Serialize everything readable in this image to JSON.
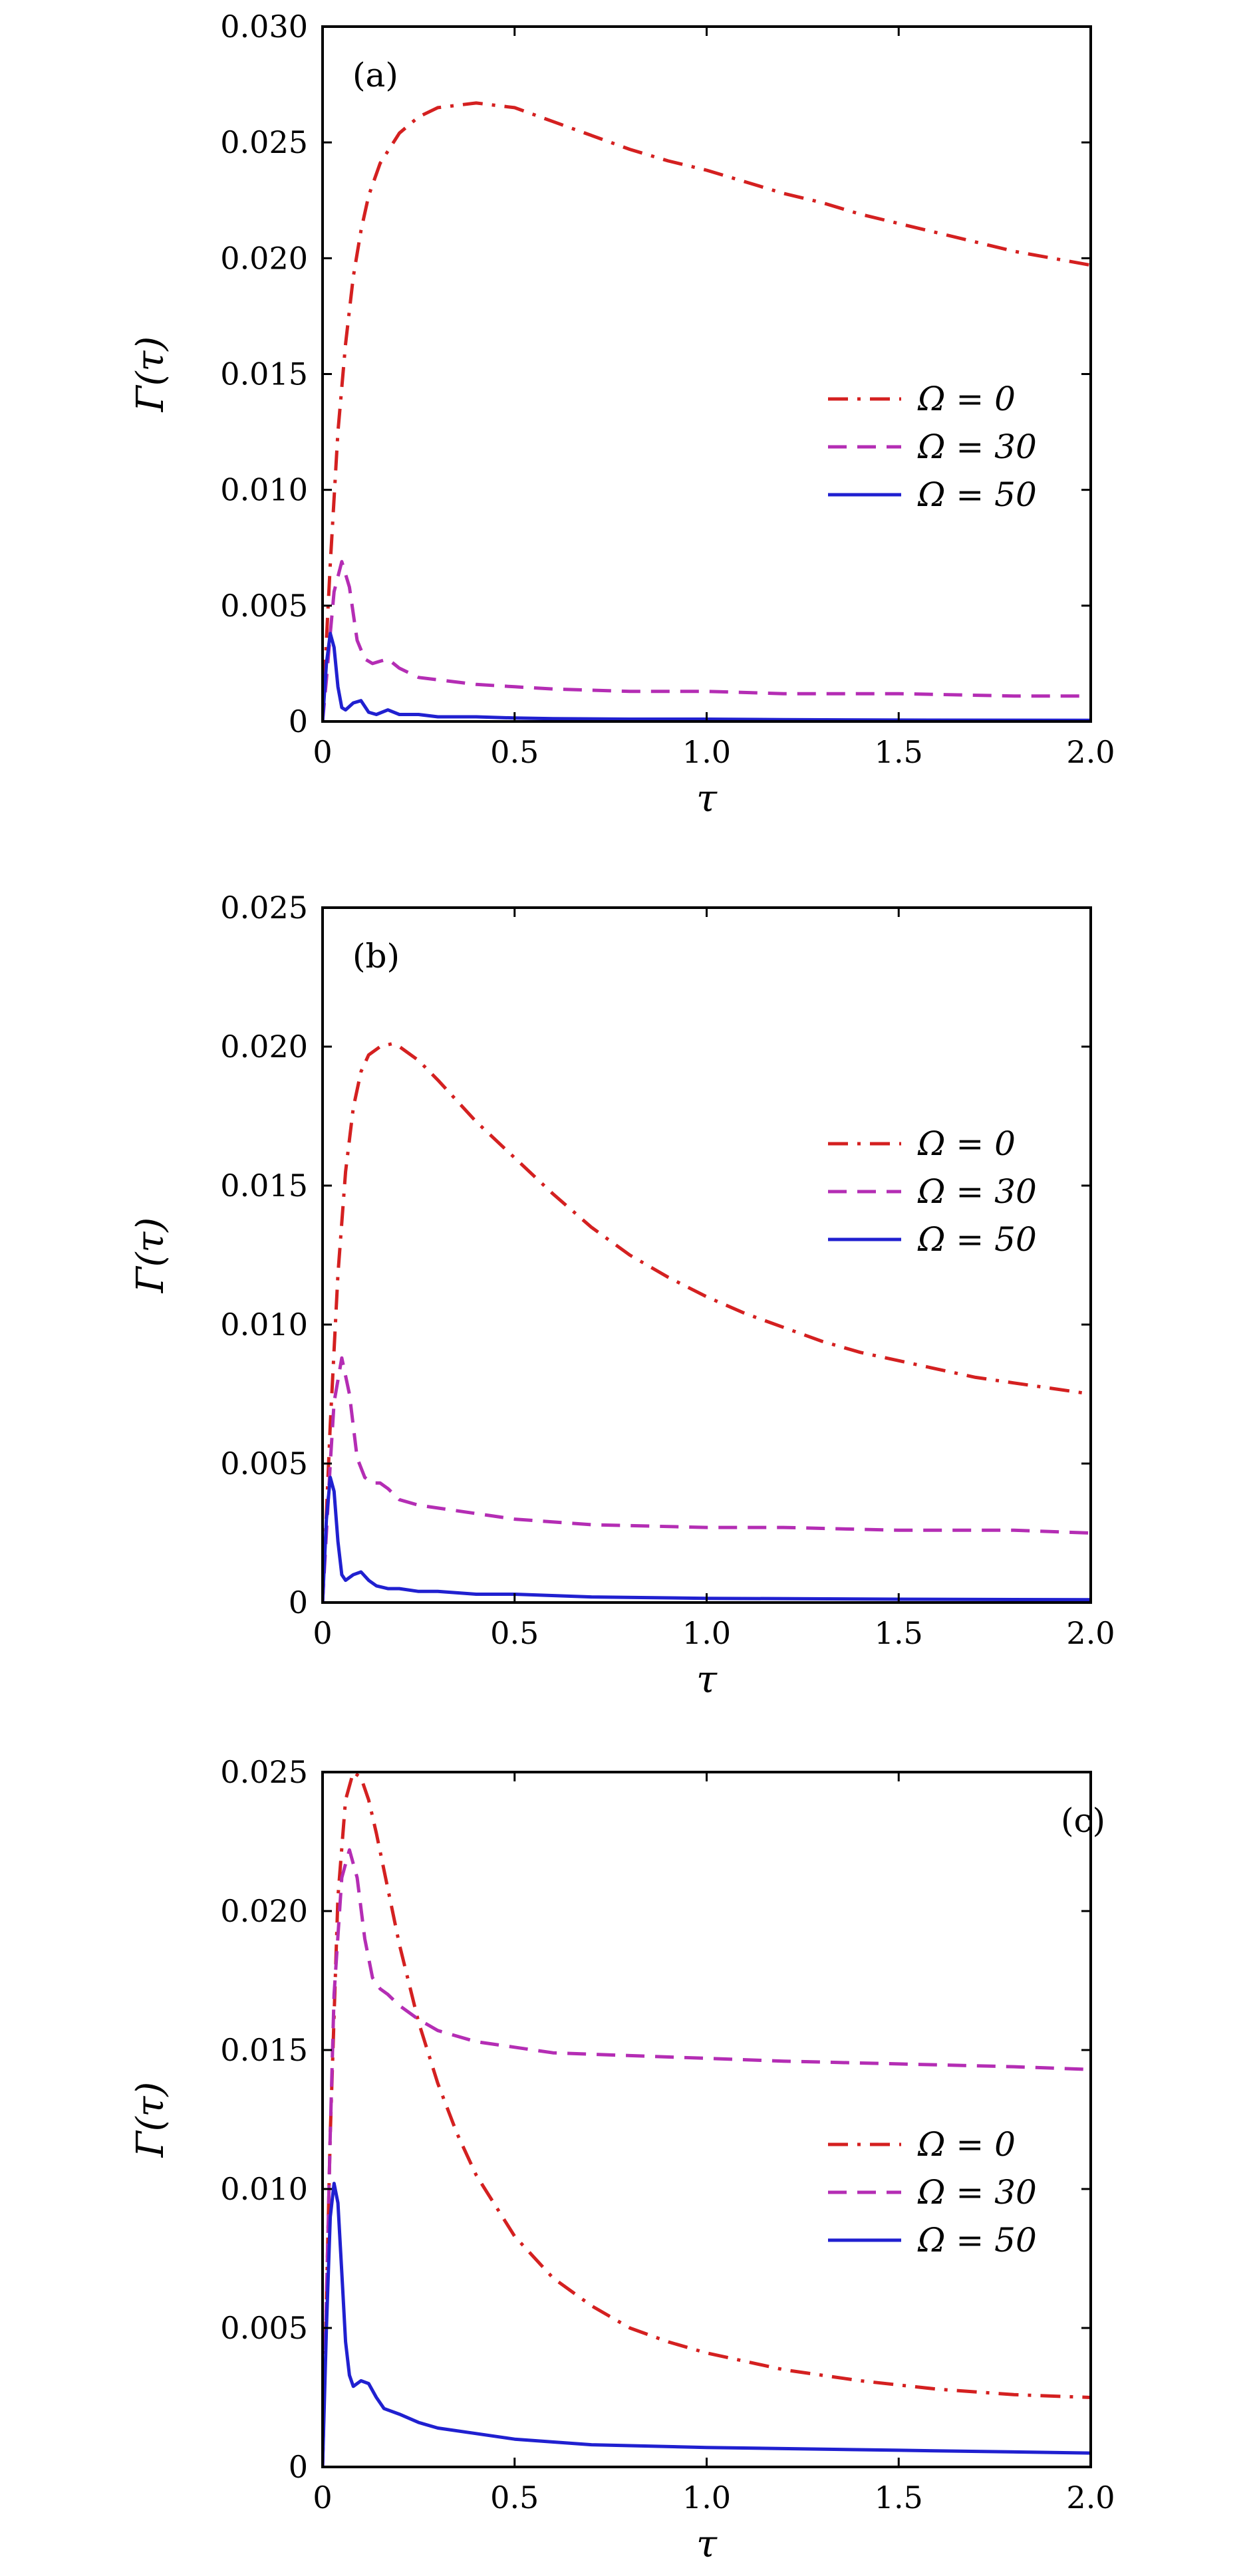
{
  "chart_data": [
    {
      "type": "line",
      "panel_label": "(a)",
      "xlabel": "τ",
      "ylabel": "Γ(τ)",
      "xlim": [
        0,
        2.0
      ],
      "ylim": [
        0,
        0.03
      ],
      "xticks": [
        0,
        0.5,
        1.0,
        1.5,
        2.0
      ],
      "xtick_labels": [
        "0",
        "0.5",
        "1.0",
        "1.5",
        "2.0"
      ],
      "yticks": [
        0,
        0.005,
        0.01,
        0.015,
        0.02,
        0.025,
        0.03
      ],
      "ytick_labels": [
        "0",
        "0.005",
        "0.010",
        "0.015",
        "0.020",
        "0.025",
        "0.030"
      ],
      "grid": false,
      "legend_position": "right",
      "series": [
        {
          "name": "Ω = 0",
          "color": "#d42020",
          "dash": "dashdot",
          "x": [
            0,
            0.01,
            0.02,
            0.04,
            0.06,
            0.08,
            0.1,
            0.12,
            0.15,
            0.2,
            0.25,
            0.3,
            0.35,
            0.4,
            0.45,
            0.5,
            0.6,
            0.7,
            0.8,
            0.9,
            1.0,
            1.1,
            1.2,
            1.3,
            1.4,
            1.5,
            1.6,
            1.7,
            1.8,
            1.9,
            2.0
          ],
          "y": [
            0,
            0.0035,
            0.0068,
            0.0125,
            0.0163,
            0.0192,
            0.0212,
            0.0227,
            0.0241,
            0.0254,
            0.0261,
            0.0265,
            0.0266,
            0.0267,
            0.0266,
            0.0265,
            0.0259,
            0.0253,
            0.0247,
            0.0242,
            0.0238,
            0.0233,
            0.0228,
            0.0224,
            0.0219,
            0.0215,
            0.0211,
            0.0207,
            0.0203,
            0.02,
            0.0197
          ]
        },
        {
          "name": "Ω = 30",
          "color": "#b42db4",
          "dash": "dashed",
          "x": [
            0,
            0.01,
            0.02,
            0.03,
            0.05,
            0.07,
            0.09,
            0.11,
            0.13,
            0.15,
            0.17,
            0.2,
            0.25,
            0.3,
            0.4,
            0.5,
            0.6,
            0.8,
            1.0,
            1.2,
            1.5,
            1.8,
            2.0
          ],
          "y": [
            0,
            0.0018,
            0.0038,
            0.0056,
            0.0069,
            0.0058,
            0.0035,
            0.0027,
            0.0025,
            0.0026,
            0.0027,
            0.0023,
            0.0019,
            0.0018,
            0.0016,
            0.0015,
            0.0014,
            0.0013,
            0.0013,
            0.0012,
            0.0012,
            0.0011,
            0.0011
          ]
        },
        {
          "name": "Ω = 50",
          "color": "#2020d0",
          "dash": "solid",
          "x": [
            0,
            0.01,
            0.02,
            0.03,
            0.04,
            0.05,
            0.06,
            0.08,
            0.1,
            0.12,
            0.14,
            0.17,
            0.2,
            0.25,
            0.3,
            0.4,
            0.5,
            0.6,
            0.8,
            1.0,
            1.2,
            1.5,
            2.0
          ],
          "y": [
            0,
            0.0025,
            0.0038,
            0.0032,
            0.0015,
            0.0006,
            0.0005,
            0.0008,
            0.0009,
            0.0004,
            0.0003,
            0.0005,
            0.0003,
            0.0003,
            0.0002,
            0.0002,
            0.00015,
            0.00012,
            0.0001,
            0.0001,
            8e-05,
            6e-05,
            5e-05
          ]
        }
      ]
    },
    {
      "type": "line",
      "panel_label": "(b)",
      "xlabel": "τ",
      "ylabel": "Γ(τ)",
      "xlim": [
        0,
        2.0
      ],
      "ylim": [
        0,
        0.025
      ],
      "xticks": [
        0,
        0.5,
        1.0,
        1.5,
        2.0
      ],
      "xtick_labels": [
        "0",
        "0.5",
        "1.0",
        "1.5",
        "2.0"
      ],
      "yticks": [
        0,
        0.005,
        0.01,
        0.015,
        0.02,
        0.025
      ],
      "ytick_labels": [
        "0",
        "0.005",
        "0.010",
        "0.015",
        "0.020",
        "0.025"
      ],
      "grid": false,
      "legend_position": "right",
      "series": [
        {
          "name": "Ω = 0",
          "color": "#d42020",
          "dash": "dashdot",
          "x": [
            0,
            0.01,
            0.02,
            0.04,
            0.06,
            0.08,
            0.1,
            0.12,
            0.15,
            0.18,
            0.2,
            0.25,
            0.3,
            0.4,
            0.5,
            0.6,
            0.7,
            0.8,
            0.9,
            1.0,
            1.1,
            1.2,
            1.3,
            1.4,
            1.5,
            1.6,
            1.7,
            1.8,
            1.9,
            2.0
          ],
          "y": [
            0,
            0.0032,
            0.0064,
            0.0118,
            0.0155,
            0.0178,
            0.0191,
            0.0197,
            0.02,
            0.0201,
            0.02,
            0.0195,
            0.0188,
            0.0173,
            0.016,
            0.0147,
            0.0135,
            0.0125,
            0.0117,
            0.011,
            0.0104,
            0.0099,
            0.0094,
            0.009,
            0.0087,
            0.0084,
            0.0081,
            0.0079,
            0.0077,
            0.0075
          ]
        },
        {
          "name": "Ω = 30",
          "color": "#b42db4",
          "dash": "dashed",
          "x": [
            0,
            0.01,
            0.02,
            0.03,
            0.05,
            0.07,
            0.09,
            0.11,
            0.13,
            0.15,
            0.17,
            0.2,
            0.25,
            0.3,
            0.4,
            0.5,
            0.7,
            1.0,
            1.2,
            1.5,
            1.8,
            2.0
          ],
          "y": [
            0,
            0.0025,
            0.005,
            0.0072,
            0.0088,
            0.0075,
            0.0052,
            0.0045,
            0.0043,
            0.0043,
            0.0041,
            0.0037,
            0.0035,
            0.0034,
            0.0032,
            0.003,
            0.0028,
            0.0027,
            0.0027,
            0.0026,
            0.0026,
            0.0025
          ]
        },
        {
          "name": "Ω = 50",
          "color": "#2020d0",
          "dash": "solid",
          "x": [
            0,
            0.01,
            0.02,
            0.03,
            0.04,
            0.05,
            0.06,
            0.08,
            0.1,
            0.12,
            0.14,
            0.17,
            0.2,
            0.25,
            0.3,
            0.4,
            0.5,
            0.7,
            1.0,
            1.5,
            2.0
          ],
          "y": [
            0,
            0.003,
            0.0045,
            0.004,
            0.0022,
            0.001,
            0.0008,
            0.001,
            0.0011,
            0.0008,
            0.0006,
            0.0005,
            0.0005,
            0.0004,
            0.0004,
            0.0003,
            0.0003,
            0.0002,
            0.00015,
            0.00012,
            0.0001
          ]
        }
      ]
    },
    {
      "type": "line",
      "panel_label": "(c)",
      "xlabel": "τ",
      "ylabel": "Γ(τ)",
      "xlim": [
        0,
        2.0
      ],
      "ylim": [
        0,
        0.025
      ],
      "xticks": [
        0,
        0.5,
        1.0,
        1.5,
        2.0
      ],
      "xtick_labels": [
        "0",
        "0.5",
        "1.0",
        "1.5",
        "2.0"
      ],
      "yticks": [
        0,
        0.005,
        0.01,
        0.015,
        0.02,
        0.025
      ],
      "ytick_labels": [
        "0",
        "0.005",
        "0.010",
        "0.015",
        "0.020",
        "0.025"
      ],
      "grid": false,
      "legend_position": "right",
      "series": [
        {
          "name": "Ω = 0",
          "color": "#d42020",
          "dash": "dashdot",
          "x": [
            0,
            0.01,
            0.02,
            0.04,
            0.06,
            0.08,
            0.1,
            0.12,
            0.14,
            0.17,
            0.2,
            0.25,
            0.3,
            0.35,
            0.4,
            0.5,
            0.6,
            0.7,
            0.8,
            0.9,
            1.0,
            1.2,
            1.4,
            1.6,
            1.8,
            2.0
          ],
          "y": [
            0,
            0.006,
            0.012,
            0.0205,
            0.024,
            0.025,
            0.0248,
            0.024,
            0.0228,
            0.0208,
            0.0188,
            0.016,
            0.0138,
            0.012,
            0.0105,
            0.0083,
            0.0068,
            0.0058,
            0.005,
            0.0045,
            0.0041,
            0.0035,
            0.0031,
            0.0028,
            0.0026,
            0.0025
          ]
        },
        {
          "name": "Ω = 30",
          "color": "#b42db4",
          "dash": "dashed",
          "x": [
            0,
            0.01,
            0.02,
            0.03,
            0.05,
            0.07,
            0.09,
            0.11,
            0.13,
            0.15,
            0.17,
            0.2,
            0.25,
            0.3,
            0.4,
            0.5,
            0.6,
            0.8,
            1.0,
            1.2,
            1.5,
            1.8,
            2.0
          ],
          "y": [
            0,
            0.006,
            0.012,
            0.017,
            0.0212,
            0.0222,
            0.0212,
            0.019,
            0.0176,
            0.0172,
            0.017,
            0.0166,
            0.0161,
            0.0157,
            0.0153,
            0.0151,
            0.0149,
            0.0148,
            0.0147,
            0.0146,
            0.0145,
            0.0144,
            0.0143
          ]
        },
        {
          "name": "Ω = 50",
          "color": "#2020d0",
          "dash": "solid",
          "x": [
            0,
            0.01,
            0.02,
            0.03,
            0.04,
            0.05,
            0.06,
            0.07,
            0.08,
            0.1,
            0.12,
            0.14,
            0.16,
            0.2,
            0.25,
            0.3,
            0.4,
            0.5,
            0.7,
            1.0,
            1.5,
            2.0
          ],
          "y": [
            0,
            0.005,
            0.009,
            0.0102,
            0.0095,
            0.007,
            0.0045,
            0.0033,
            0.0029,
            0.0031,
            0.003,
            0.0025,
            0.0021,
            0.0019,
            0.0016,
            0.0014,
            0.0012,
            0.001,
            0.0008,
            0.0007,
            0.0006,
            0.0005
          ]
        }
      ]
    }
  ]
}
